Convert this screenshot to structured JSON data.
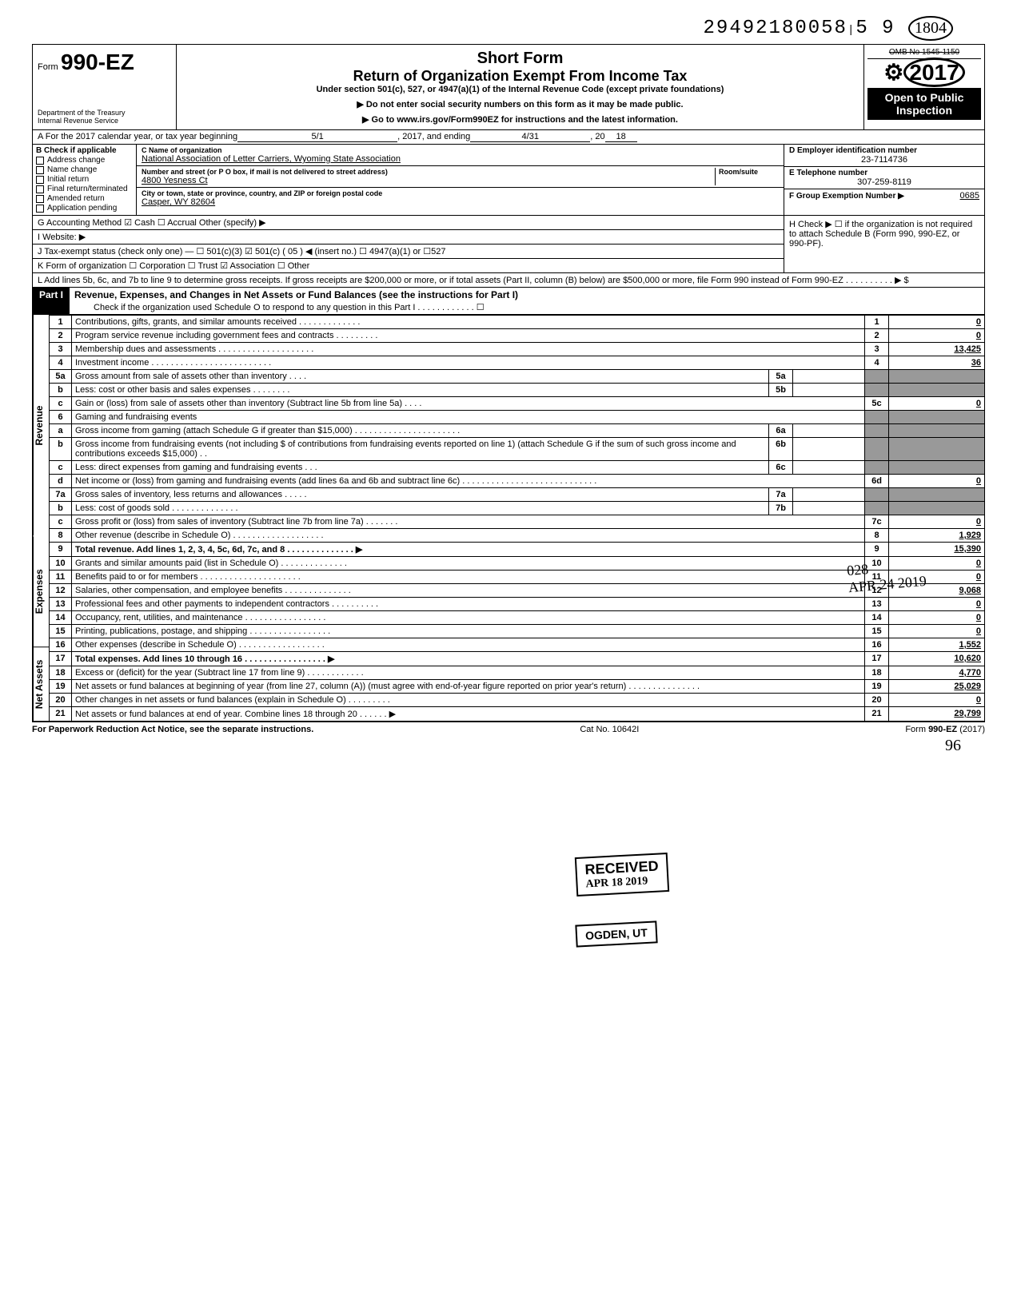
{
  "top_id": "29492180058",
  "top_id_suffix": "5  9",
  "top_id_circled": "1804",
  "form": {
    "prefix": "Form",
    "number": "990-EZ",
    "dept": "Department of the Treasury\nInternal Revenue Service"
  },
  "header": {
    "title1": "Short Form",
    "title2": "Return of Organization Exempt From Income Tax",
    "subtitle": "Under section 501(c), 527, or 4947(a)(1) of the Internal Revenue Code (except private foundations)",
    "arrow1": "▶ Do not enter social security numbers on this form as it may be made public.",
    "arrow2": "▶ Go to www.irs.gov/Form990EZ for instructions and the latest information."
  },
  "right_box": {
    "omb": "OMB No 1545-1150",
    "year": "2017",
    "open": "Open to Public Inspection"
  },
  "line_a": {
    "prefix": "A  For the 2017 calendar year, or tax year beginning",
    "begin": "5/1",
    "mid": ", 2017, and ending",
    "end": "4/31",
    "suffix": ", 20",
    "yy": "18"
  },
  "col_b": {
    "title": "B  Check if applicable",
    "items": [
      "Address change",
      "Name change",
      "Initial return",
      "Final return/terminated",
      "Amended return",
      "Application pending"
    ]
  },
  "col_c": {
    "lbl_name": "C  Name of organization",
    "name": "National Association of Letter Carriers, Wyoming State Association",
    "lbl_addr": "Number and street (or P O  box, if mail is not delivered to street address)",
    "room_lbl": "Room/suite",
    "addr": "4800 Yesness Ct",
    "lbl_city": "City or town, state or province, country, and ZIP or foreign postal code",
    "city": "Casper, WY 82604"
  },
  "col_de": {
    "d_lbl": "D Employer identification number",
    "d_val": "23-7114736",
    "e_lbl": "E  Telephone number",
    "e_val": "307-259-8119",
    "f_lbl": "F  Group Exemption Number ▶",
    "f_val": "0685"
  },
  "line_g": "G  Accounting Method    ☑ Cash    ☐ Accrual    Other (specify) ▶",
  "line_h": "H  Check ▶ ☐ if the organization is not required to attach Schedule B (Form 990, 990-EZ, or 990-PF).",
  "line_i": "I   Website: ▶",
  "line_j": "J  Tax-exempt status (check only one) — ☐ 501(c)(3)   ☑ 501(c) ( 05 ) ◀ (insert no.) ☐ 4947(a)(1) or  ☐527",
  "line_k": "K  Form of organization   ☐ Corporation    ☐ Trust    ☑ Association    ☐ Other",
  "line_l": "L  Add lines 5b, 6c, and 7b to line 9 to determine gross receipts. If gross receipts are $200,000 or more, or if total assets (Part II, column (B) below) are $500,000 or more, file Form 990 instead of Form 990-EZ . . . . . . . . . . ▶  $",
  "part1": {
    "label": "Part I",
    "title": "Revenue, Expenses, and Changes in Net Assets or Fund Balances (see the instructions for Part I)",
    "check_line": "Check if the organization used Schedule O to respond to any question in this Part I . . . . . . . . . . . . ☐"
  },
  "side_labels": [
    "Revenue",
    "Expenses",
    "Net Assets"
  ],
  "rows": [
    {
      "n": "1",
      "d": "Contributions, gifts, grants, and similar amounts received . . . . . . . . . . . . .",
      "b": "1",
      "a": "0"
    },
    {
      "n": "2",
      "d": "Program service revenue including government fees and contracts  . . . . . . . . .",
      "b": "2",
      "a": "0"
    },
    {
      "n": "3",
      "d": "Membership dues and assessments . . . . . . . . . . . . . . . . . . . .",
      "b": "3",
      "a": "13,425"
    },
    {
      "n": "4",
      "d": "Investment income  . . . . . . . . . . . . . . . . . . . . . . . . .",
      "b": "4",
      "a": "36"
    },
    {
      "n": "5a",
      "d": "Gross amount from sale of assets other than inventory  . . . .",
      "ib": "5a",
      "shade": true
    },
    {
      "n": "b",
      "d": "Less: cost or other basis and sales expenses . . . . . . . .",
      "ib": "5b",
      "shade": true
    },
    {
      "n": "c",
      "d": "Gain or (loss) from sale of assets other than inventory (Subtract line 5b from line 5a) . . . .",
      "b": "5c",
      "a": "0"
    },
    {
      "n": "6",
      "d": "Gaming and fundraising events",
      "shade": true
    },
    {
      "n": "a",
      "d": "Gross income from gaming (attach Schedule G if greater than $15,000) . . . . . . . . . . . . . . . . . . . . . .",
      "ib": "6a",
      "shade": true
    },
    {
      "n": "b",
      "d": "Gross income from fundraising events (not including  $                of contributions from fundraising events reported on line 1) (attach Schedule G if the sum of such gross income and contributions exceeds $15,000) . .",
      "ib": "6b",
      "shade": true
    },
    {
      "n": "c",
      "d": "Less: direct expenses from gaming and fundraising events  . . .",
      "ib": "6c",
      "shade": true
    },
    {
      "n": "d",
      "d": "Net income or (loss) from gaming and fundraising events (add lines 6a and 6b and subtract line 6c)  . . . . . . . . . . . . . . . . . . . . . . . . . . . .",
      "b": "6d",
      "a": "0"
    },
    {
      "n": "7a",
      "d": "Gross sales of inventory, less returns and allowances . . . . .",
      "ib": "7a",
      "shade": true
    },
    {
      "n": "b",
      "d": "Less: cost of goods sold   . . . . . . . . . . . . . .",
      "ib": "7b",
      "shade": true
    },
    {
      "n": "c",
      "d": "Gross profit or (loss) from sales of inventory (Subtract line 7b from line 7a)  . . . . . . .",
      "b": "7c",
      "a": "0"
    },
    {
      "n": "8",
      "d": "Other revenue (describe in Schedule O) . . . . . . . . . . . . . . . . . . .",
      "b": "8",
      "a": "1,929"
    },
    {
      "n": "9",
      "d": "Total revenue. Add lines 1, 2, 3, 4, 5c, 6d, 7c, and 8  . . . . . . . . . . . . . . ▶",
      "b": "9",
      "a": "15,390",
      "bold": true
    },
    {
      "n": "10",
      "d": "Grants and similar amounts paid (list in Schedule O)  . . . . . . . . . . . . . .",
      "b": "10",
      "a": "0"
    },
    {
      "n": "11",
      "d": "Benefits paid to or for members  . . . . . . . . . . . . . . . . . . . . .",
      "b": "11",
      "a": "0"
    },
    {
      "n": "12",
      "d": "Salaries, other compensation, and employee benefits . . . . . . . . . . . . . .",
      "b": "12",
      "a": "9,068"
    },
    {
      "n": "13",
      "d": "Professional fees and other payments to independent contractors . . . . . . . . . .",
      "b": "13",
      "a": "0"
    },
    {
      "n": "14",
      "d": "Occupancy, rent, utilities, and maintenance  . . . . . . . . . . . . . . . . .",
      "b": "14",
      "a": "0"
    },
    {
      "n": "15",
      "d": "Printing, publications, postage, and shipping . . . . . . . . . . . . . . . . .",
      "b": "15",
      "a": "0"
    },
    {
      "n": "16",
      "d": "Other expenses (describe in Schedule O) . . . . . . . . . . . . . . . . . .",
      "b": "16",
      "a": "1,552"
    },
    {
      "n": "17",
      "d": "Total expenses. Add lines 10 through 16  . . . . . . . . . . . . . . . . . ▶",
      "b": "17",
      "a": "10,620",
      "bold": true
    },
    {
      "n": "18",
      "d": "Excess or (deficit) for the year (Subtract line 17 from line 9)  . . . . . . . . . . . .",
      "b": "18",
      "a": "4,770"
    },
    {
      "n": "19",
      "d": "Net assets or fund balances at beginning of year (from line 27, column (A)) (must agree with end-of-year figure reported on prior year's return)  . . . . . . . . . . . . . . .",
      "b": "19",
      "a": "25,029"
    },
    {
      "n": "20",
      "d": "Other changes in net assets or fund balances (explain in Schedule O) . . . . . . . . .",
      "b": "20",
      "a": "0"
    },
    {
      "n": "21",
      "d": "Net assets or fund balances at end of year. Combine lines 18 through 20  . . . . . . ▶",
      "b": "21",
      "a": "29,799"
    }
  ],
  "footer": {
    "left": "For Paperwork Reduction Act Notice, see the separate instructions.",
    "mid": "Cat  No. 10642I",
    "right": "Form 990-EZ (2017)"
  },
  "stamps": {
    "received": "RECEIVED",
    "received_date": "APR 18 2019",
    "ogden": "OGDEN, UT",
    "apr24_1": "028",
    "apr24_2": "APR 24 2019"
  },
  "page_hand": "96"
}
